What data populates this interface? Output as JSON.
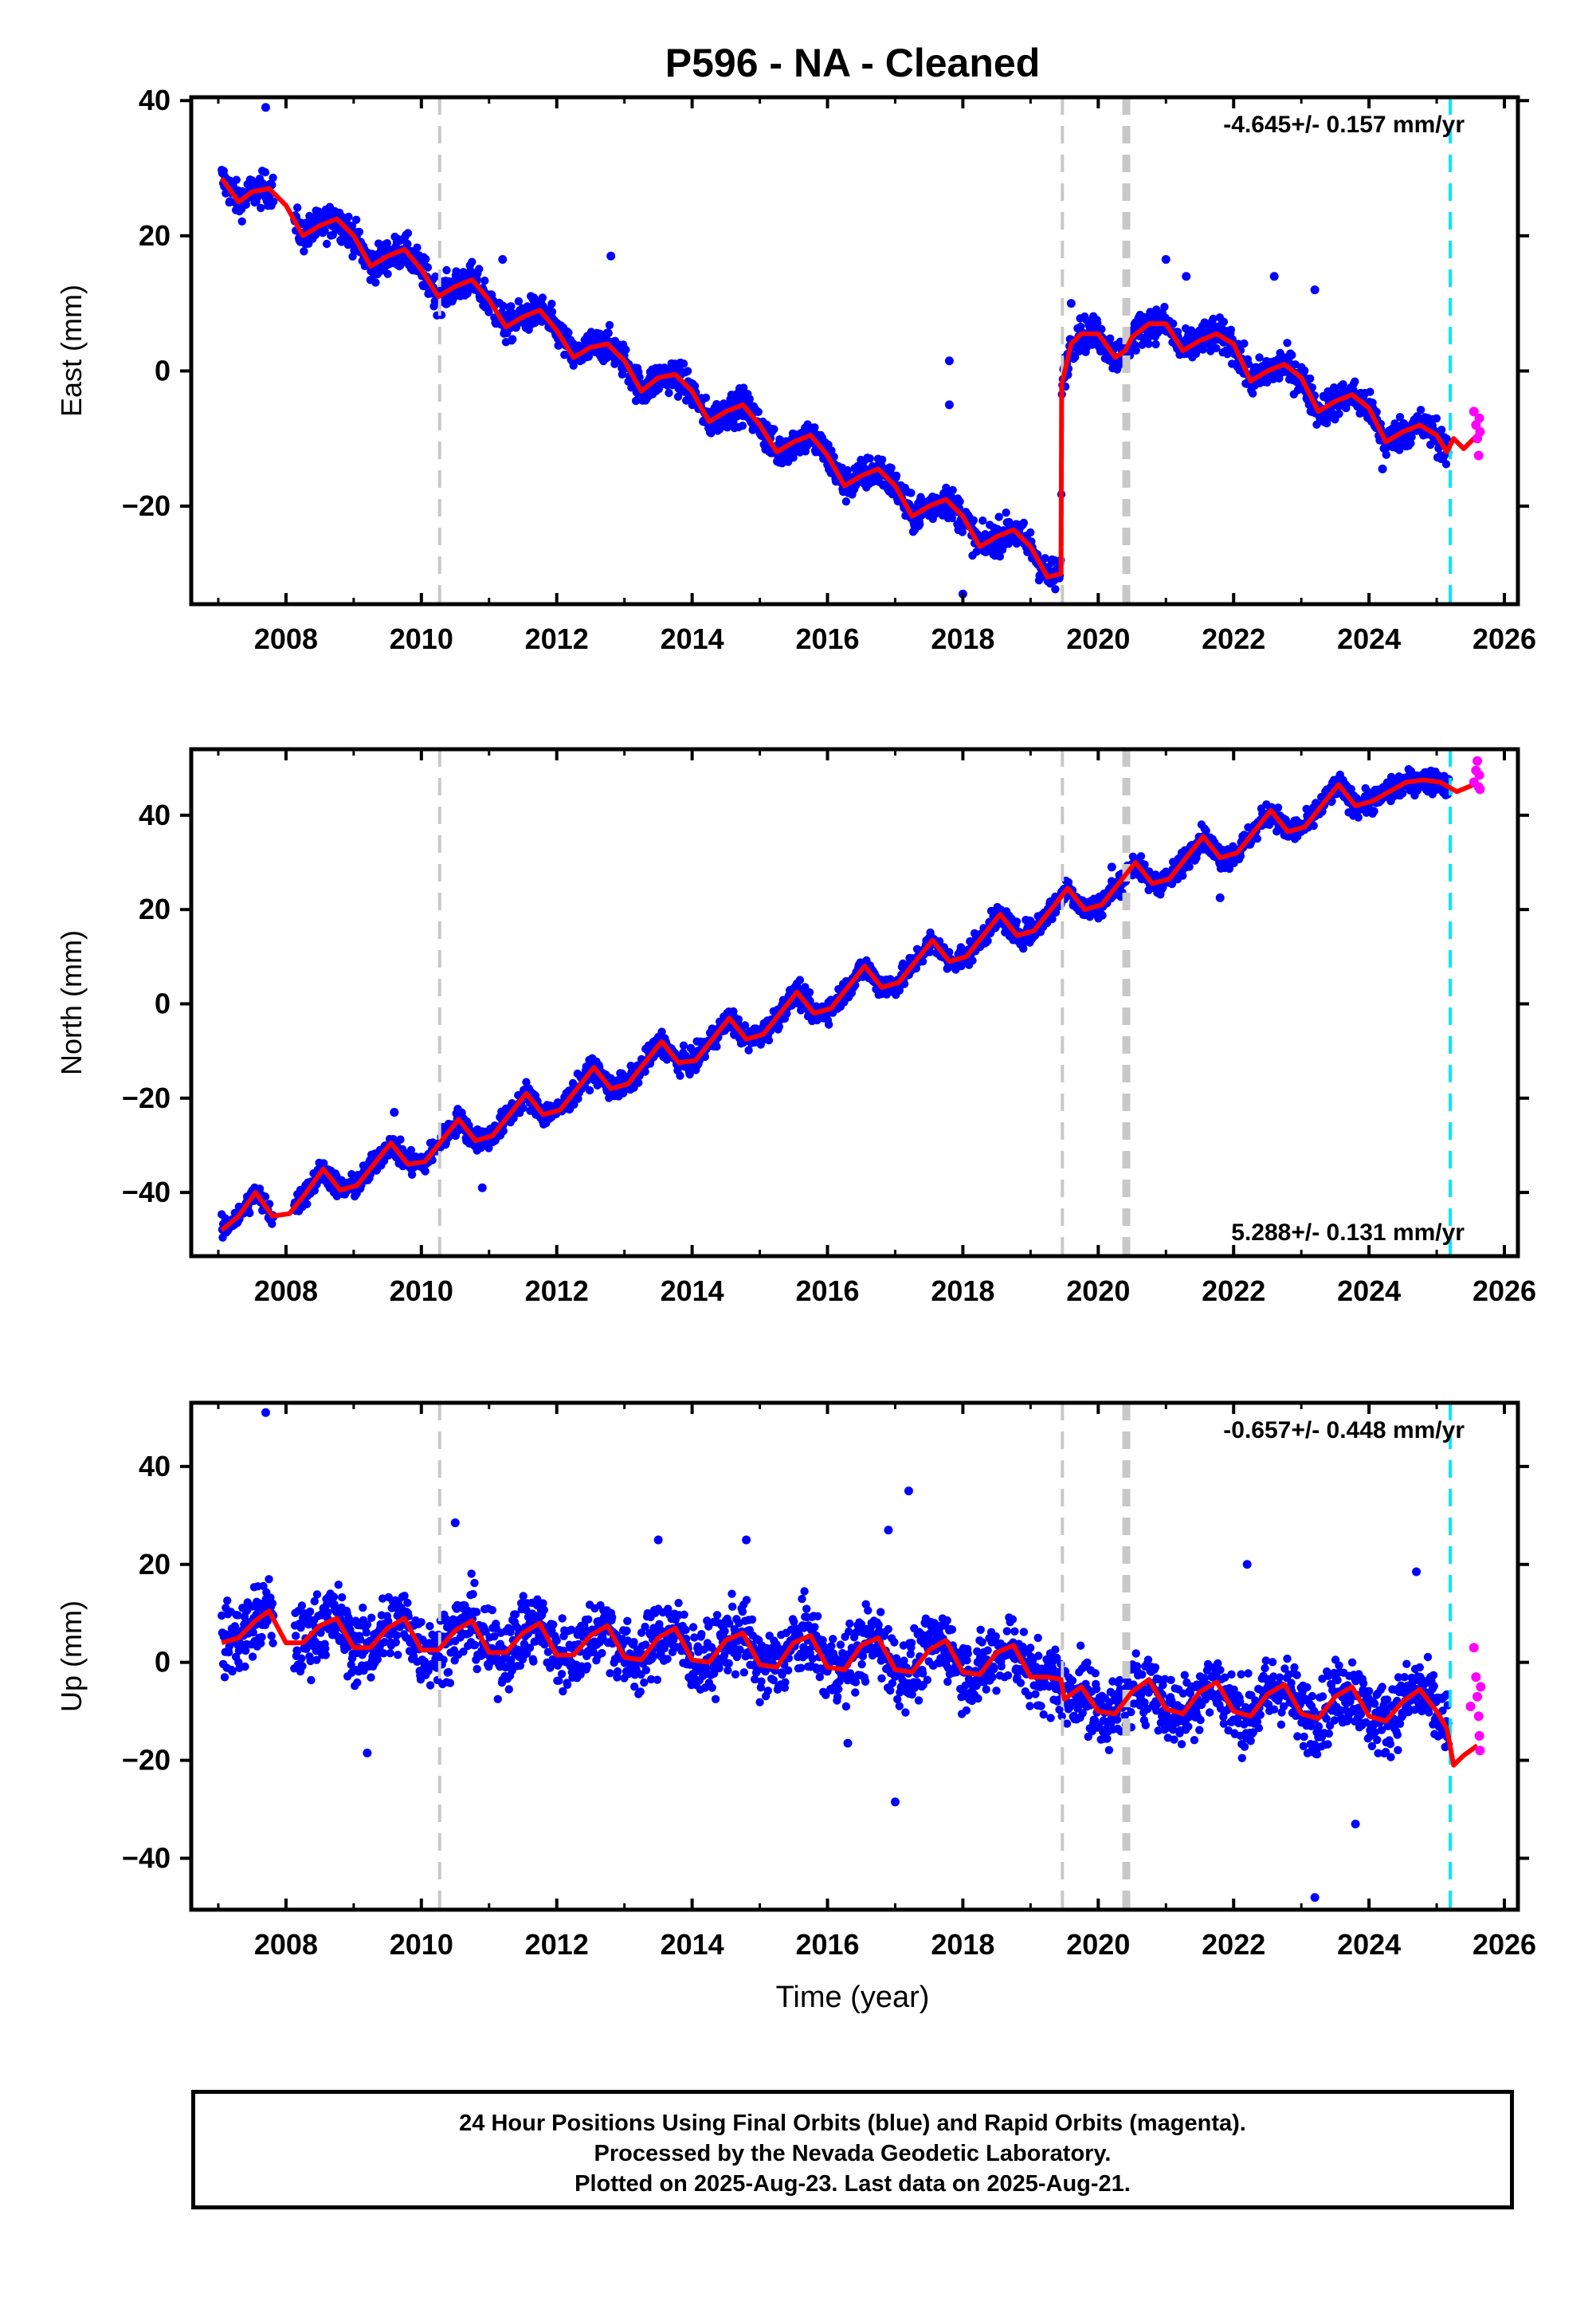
{
  "title": "P596  - NA - Cleaned",
  "xlabel": "Time (year)",
  "footer": {
    "line1": "24 Hour Positions Using Final Orbits (blue) and Rapid Orbits (magenta).",
    "line2": "Processed by the Nevada Geodetic Laboratory.",
    "line3": "Plotted on 2025-Aug-23. Last data on 2025-Aug-21."
  },
  "colors": {
    "final_orbits": "#0000ff",
    "rapid_orbits": "#ff00ff",
    "model": "#ff0000",
    "equipment_change": "#c8c8c8",
    "event_marker": "#00e5ff"
  },
  "chart_data": [
    {
      "type": "scatter",
      "panel": "East",
      "ylabel": "East (mm)",
      "xlim": [
        2006.6,
        2026.2
      ],
      "ylim": [
        -34.5,
        40.5
      ],
      "xticks": [
        "2008",
        "2010",
        "2012",
        "2014",
        "2016",
        "2018",
        "2020",
        "2022",
        "2024",
        "2026"
      ],
      "yticks": [
        -20,
        0,
        20,
        40
      ],
      "ytick_labels": [
        "−20",
        "0",
        "20",
        "40"
      ],
      "rate_label": "-4.645+/- 0.157 mm/yr",
      "rate_position": "top-right",
      "velocity": -4.645,
      "model": {
        "x": [
          2007.05,
          2007.3,
          2007.5,
          2007.75,
          2008.0,
          2008.25,
          2008.5,
          2008.75,
          2009.0,
          2009.25,
          2009.5,
          2009.75,
          2010.0,
          2010.25,
          2010.5,
          2010.75,
          2011.0,
          2011.25,
          2011.5,
          2011.75,
          2012.0,
          2012.25,
          2012.5,
          2012.75,
          2013.0,
          2013.25,
          2013.5,
          2013.75,
          2014.0,
          2014.25,
          2014.5,
          2014.75,
          2015.0,
          2015.25,
          2015.5,
          2015.75,
          2016.0,
          2016.25,
          2016.5,
          2016.75,
          2017.0,
          2017.25,
          2017.5,
          2017.75,
          2018.0,
          2018.25,
          2018.5,
          2018.75,
          2019.0,
          2019.25,
          2019.45,
          2019.46,
          2019.6,
          2019.75,
          2020.0,
          2020.25,
          2020.4,
          2020.5,
          2020.75,
          2021.0,
          2021.25,
          2021.5,
          2021.75,
          2022.0,
          2022.25,
          2022.5,
          2022.75,
          2023.0,
          2023.25,
          2023.5,
          2023.75,
          2024.0,
          2024.25,
          2024.5,
          2024.75,
          2025.0,
          2025.15,
          2025.25,
          2025.4,
          2025.6
        ],
        "y": [
          28.5,
          25.0,
          26.5,
          27.0,
          24.5,
          20.0,
          21.5,
          22.5,
          20.0,
          15.5,
          17.0,
          18.0,
          15.0,
          11.0,
          12.5,
          13.5,
          10.5,
          6.5,
          8.0,
          9.0,
          6.0,
          2.0,
          3.5,
          4.0,
          1.5,
          -3.0,
          -1.0,
          -0.5,
          -3.0,
          -7.5,
          -6.0,
          -5.0,
          -8.0,
          -12.0,
          -10.5,
          -9.5,
          -12.5,
          -17.0,
          -15.5,
          -14.5,
          -17.0,
          -21.5,
          -20.0,
          -19.0,
          -21.5,
          -26.0,
          -24.5,
          -23.5,
          -26.0,
          -30.5,
          -30.0,
          -2.0,
          4.0,
          5.5,
          5.5,
          2.0,
          3.0,
          5.0,
          7.0,
          7.0,
          3.0,
          4.5,
          5.5,
          4.0,
          -1.5,
          0.0,
          1.0,
          -1.0,
          -6.0,
          -4.5,
          -3.5,
          -5.5,
          -10.5,
          -9.0,
          -8.0,
          -9.5,
          -12.0,
          -10.0,
          -11.5,
          -9.5
        ]
      },
      "outliers": [
        [
          2007.7,
          39.0
        ],
        [
          2009.9,
          17.0
        ],
        [
          2011.2,
          16.5
        ],
        [
          2012.8,
          17.0
        ],
        [
          2017.8,
          1.5
        ],
        [
          2017.8,
          -5.0
        ],
        [
          2019.6,
          10.0
        ],
        [
          2021.0,
          16.5
        ],
        [
          2021.3,
          14.0
        ],
        [
          2022.6,
          14.0
        ],
        [
          2023.2,
          12.0
        ],
        [
          2024.2,
          -14.5
        ],
        [
          2018.0,
          -33.0
        ]
      ],
      "rapid": [
        [
          2025.55,
          -6.0
        ],
        [
          2025.58,
          -8.0
        ],
        [
          2025.6,
          -10.0
        ],
        [
          2025.62,
          -12.5
        ],
        [
          2025.63,
          -7.0
        ],
        [
          2025.64,
          -9.0
        ]
      ],
      "equipment_changes": [
        2010.27,
        2019.47,
        2020.38,
        2020.42,
        2020.45
      ],
      "event_markers": [
        2025.2
      ]
    },
    {
      "type": "scatter",
      "panel": "North",
      "ylabel": "North (mm)",
      "xlim": [
        2006.6,
        2026.2
      ],
      "ylim": [
        -53.5,
        54.0
      ],
      "xticks": [
        "2008",
        "2010",
        "2012",
        "2014",
        "2016",
        "2018",
        "2020",
        "2022",
        "2024",
        "2026"
      ],
      "yticks": [
        -40,
        -20,
        0,
        20,
        40
      ],
      "ytick_labels": [
        "−40",
        "−20",
        "0",
        "20",
        "40"
      ],
      "rate_label": "5.288+/- 0.131 mm/yr",
      "rate_position": "bottom-right",
      "velocity": 5.288,
      "model": {
        "x": [
          2007.05,
          2007.3,
          2007.55,
          2007.8,
          2008.05,
          2008.3,
          2008.55,
          2008.8,
          2009.05,
          2009.3,
          2009.55,
          2009.8,
          2010.05,
          2010.3,
          2010.55,
          2010.8,
          2011.05,
          2011.3,
          2011.55,
          2011.8,
          2012.05,
          2012.3,
          2012.55,
          2012.8,
          2013.05,
          2013.3,
          2013.55,
          2013.8,
          2014.05,
          2014.3,
          2014.55,
          2014.8,
          2015.05,
          2015.3,
          2015.55,
          2015.8,
          2016.05,
          2016.3,
          2016.55,
          2016.8,
          2017.05,
          2017.3,
          2017.55,
          2017.8,
          2018.05,
          2018.3,
          2018.55,
          2018.8,
          2019.05,
          2019.3,
          2019.55,
          2019.8,
          2020.05,
          2020.3,
          2020.55,
          2020.8,
          2021.05,
          2021.3,
          2021.55,
          2021.8,
          2022.05,
          2022.3,
          2022.55,
          2022.8,
          2023.05,
          2023.3,
          2023.55,
          2023.8,
          2024.05,
          2024.3,
          2024.55,
          2024.8,
          2025.05,
          2025.3,
          2025.55,
          2025.6
        ],
        "y": [
          -48.0,
          -45.0,
          -40.0,
          -45.0,
          -44.5,
          -40.0,
          -35.0,
          -39.5,
          -38.5,
          -34.0,
          -29.5,
          -34.0,
          -33.5,
          -29.0,
          -24.5,
          -29.0,
          -28.0,
          -23.5,
          -19.0,
          -23.5,
          -22.5,
          -18.0,
          -13.5,
          -18.0,
          -17.0,
          -12.5,
          -8.0,
          -12.5,
          -12.0,
          -7.5,
          -3.0,
          -7.5,
          -6.5,
          -2.0,
          2.5,
          -2.0,
          -1.0,
          3.5,
          8.0,
          3.5,
          4.5,
          9.0,
          13.5,
          9.0,
          10.0,
          14.5,
          19.0,
          14.5,
          15.5,
          20.0,
          24.5,
          20.0,
          21.0,
          25.5,
          30.0,
          25.5,
          26.5,
          31.0,
          35.5,
          31.0,
          32.0,
          36.5,
          41.0,
          36.5,
          37.5,
          42.0,
          46.5,
          42.0,
          43.0,
          45.0,
          47.0,
          47.5,
          47.0,
          45.0,
          46.5,
          47.0
        ]
      },
      "outliers": [
        [
          2009.6,
          -23.0
        ],
        [
          2010.9,
          -39.0
        ],
        [
          2019.5,
          24.0
        ],
        [
          2020.2,
          29.0
        ],
        [
          2021.8,
          22.5
        ]
      ],
      "rapid": [
        [
          2025.55,
          47.0
        ],
        [
          2025.58,
          49.5
        ],
        [
          2025.6,
          51.5
        ],
        [
          2025.62,
          46.0
        ],
        [
          2025.63,
          48.5
        ],
        [
          2025.64,
          45.5
        ]
      ],
      "equipment_changes": [
        2010.27,
        2019.47,
        2020.38,
        2020.42,
        2020.45
      ],
      "event_markers": [
        2025.2
      ]
    },
    {
      "type": "scatter",
      "panel": "Up",
      "ylabel": "Up (mm)",
      "xlim": [
        2006.6,
        2026.2
      ],
      "ylim": [
        -50.5,
        53.0
      ],
      "xticks": [
        "2008",
        "2010",
        "2012",
        "2014",
        "2016",
        "2018",
        "2020",
        "2022",
        "2024",
        "2026"
      ],
      "yticks": [
        -40,
        -20,
        0,
        20,
        40
      ],
      "ytick_labels": [
        "−40",
        "−20",
        "0",
        "20",
        "40"
      ],
      "rate_label": "-0.657+/- 0.448 mm/yr",
      "rate_position": "top-right",
      "velocity": -0.657,
      "model": {
        "x": [
          2007.05,
          2007.3,
          2007.55,
          2007.75,
          2008.0,
          2008.25,
          2008.5,
          2008.75,
          2009.0,
          2009.25,
          2009.5,
          2009.75,
          2010.0,
          2010.25,
          2010.5,
          2010.75,
          2011.0,
          2011.25,
          2011.5,
          2011.75,
          2012.0,
          2012.25,
          2012.5,
          2012.75,
          2013.0,
          2013.25,
          2013.5,
          2013.75,
          2014.0,
          2014.25,
          2014.5,
          2014.75,
          2015.0,
          2015.25,
          2015.5,
          2015.75,
          2016.0,
          2016.25,
          2016.5,
          2016.75,
          2017.0,
          2017.25,
          2017.5,
          2017.75,
          2018.0,
          2018.25,
          2018.5,
          2018.75,
          2019.0,
          2019.25,
          2019.45,
          2019.5,
          2019.75,
          2020.0,
          2020.25,
          2020.5,
          2020.75,
          2021.0,
          2021.25,
          2021.5,
          2021.75,
          2022.0,
          2022.25,
          2022.5,
          2022.75,
          2023.0,
          2023.25,
          2023.5,
          2023.75,
          2024.0,
          2024.25,
          2024.5,
          2024.75,
          2025.0,
          2025.15,
          2025.25,
          2025.4,
          2025.6
        ],
        "y": [
          4.0,
          5.0,
          8.5,
          10.5,
          4.0,
          4.0,
          7.5,
          9.0,
          3.0,
          3.0,
          7.0,
          9.0,
          2.5,
          2.5,
          6.5,
          8.5,
          2.0,
          2.0,
          6.0,
          8.0,
          1.5,
          1.5,
          5.5,
          7.5,
          1.0,
          0.5,
          5.0,
          7.0,
          0.5,
          0.0,
          4.5,
          6.0,
          -0.5,
          -1.0,
          4.0,
          5.5,
          -1.0,
          -1.5,
          3.5,
          5.0,
          -1.5,
          -2.0,
          2.5,
          4.5,
          -2.0,
          -2.5,
          2.0,
          3.5,
          -3.0,
          -3.0,
          -3.5,
          -7.5,
          -5.0,
          -10.0,
          -10.5,
          -6.0,
          -3.5,
          -9.5,
          -10.5,
          -6.0,
          -4.0,
          -10.0,
          -11.0,
          -6.5,
          -4.5,
          -10.5,
          -11.5,
          -7.0,
          -5.0,
          -11.0,
          -12.0,
          -8.0,
          -5.5,
          -10.0,
          -13.5,
          -21.0,
          -19.0,
          -17.0
        ]
      },
      "outliers": [
        [
          2007.7,
          51.0
        ],
        [
          2009.2,
          -18.5
        ],
        [
          2010.5,
          28.5
        ],
        [
          2014.8,
          25.0
        ],
        [
          2016.3,
          -16.5
        ],
        [
          2016.9,
          27.0
        ],
        [
          2017.2,
          35.0
        ],
        [
          2017.0,
          -28.5
        ],
        [
          2022.2,
          20.0
        ],
        [
          2023.2,
          -48.0
        ],
        [
          2024.7,
          18.5
        ],
        [
          2023.8,
          -33.0
        ],
        [
          2013.5,
          25.0
        ]
      ],
      "rapid": [
        [
          2025.55,
          3.0
        ],
        [
          2025.58,
          -3.0
        ],
        [
          2025.6,
          -7.0
        ],
        [
          2025.62,
          -11.0
        ],
        [
          2025.63,
          -15.0
        ],
        [
          2025.64,
          -18.0
        ],
        [
          2025.65,
          -5.0
        ],
        [
          2025.5,
          -9.0
        ]
      ],
      "equipment_changes": [
        2010.27,
        2019.47,
        2020.38,
        2020.42,
        2020.45
      ],
      "event_markers": [
        2025.2
      ]
    }
  ]
}
